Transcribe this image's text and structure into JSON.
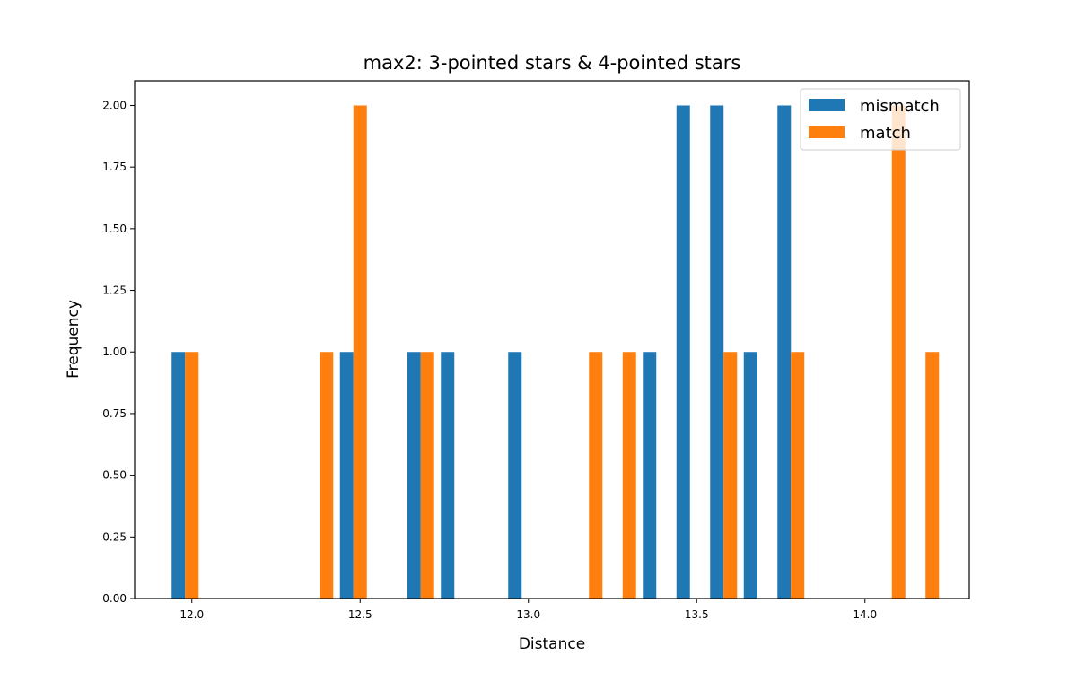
{
  "chart_data": {
    "type": "bar",
    "title": "max2:  3-pointed stars  &  4-pointed stars",
    "xlabel": "Distance",
    "ylabel": "Frequency",
    "xlim": [
      11.83,
      14.31
    ],
    "ylim": [
      0,
      2.1
    ],
    "xticks": [
      12.0,
      12.5,
      13.0,
      13.5,
      14.0
    ],
    "xtick_labels": [
      "12.0",
      "12.5",
      "13.0",
      "13.5",
      "14.0"
    ],
    "yticks": [
      0,
      0.25,
      0.5,
      0.75,
      1.0,
      1.25,
      1.5,
      1.75,
      2.0
    ],
    "ytick_labels": [
      "0.00",
      "0.25",
      "0.50",
      "0.75",
      "1.00",
      "1.25",
      "1.50",
      "1.75",
      "2.00"
    ],
    "bar_width": 0.04,
    "legend_position": "upper right",
    "grid": false,
    "series": [
      {
        "name": "mismatch",
        "color": "#1f77b4",
        "x": [
          11.96,
          12.46,
          12.66,
          12.76,
          12.96,
          13.36,
          13.46,
          13.56,
          13.66,
          13.76
        ],
        "values": [
          1,
          1,
          1,
          1,
          1,
          1,
          2,
          2,
          1,
          2
        ]
      },
      {
        "name": "match",
        "color": "#ff7f0e",
        "x": [
          12.0,
          12.4,
          12.5,
          12.7,
          13.2,
          13.3,
          13.6,
          13.8,
          14.1,
          14.2
        ],
        "values": [
          1,
          1,
          2,
          1,
          1,
          1,
          1,
          1,
          2,
          1
        ]
      }
    ]
  }
}
